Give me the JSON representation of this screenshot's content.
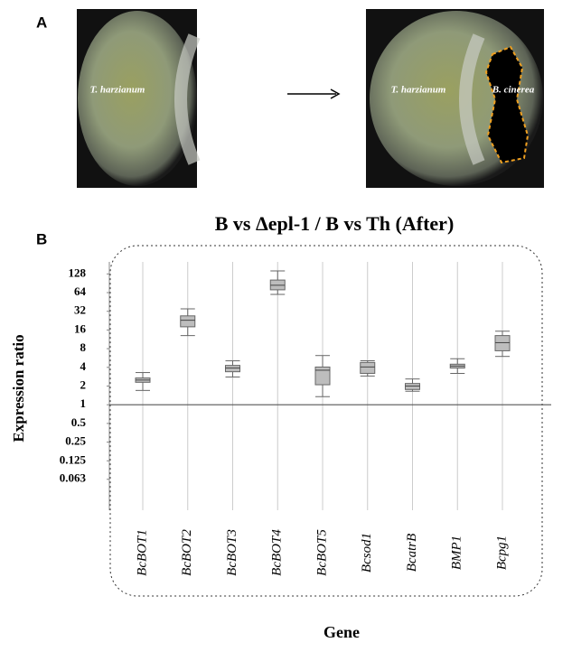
{
  "panels": {
    "a": "A",
    "b": "B"
  },
  "images": [
    {
      "labels": [
        "T. harzianum",
        "B. cinerea"
      ]
    },
    {
      "labels": [
        "T. harzianum",
        "B. cinerea"
      ]
    }
  ],
  "chart_data": {
    "type": "box",
    "title": "B vs Δepl-1 / B vs Th (After)",
    "x_label": "Gene",
    "y_label": "Expression ratio",
    "categories": [
      "BcBOT1",
      "BcBOT2",
      "BcBOT3",
      "BcBOT4",
      "BcBOT5",
      "Bcsod1",
      "BcatrB",
      "BMP1",
      "Bcpg1"
    ],
    "min": [
      1.7,
      13,
      2.8,
      60,
      1.35,
      2.9,
      1.65,
      3.2,
      6.0
    ],
    "q1": [
      2.3,
      18,
      3.4,
      71,
      2.1,
      3.2,
      1.76,
      3.9,
      7.4
    ],
    "median": [
      2.5,
      23,
      3.9,
      84,
      3.6,
      4.05,
      2.0,
      4.2,
      10
    ],
    "q3": [
      2.7,
      27,
      4.3,
      102,
      4.05,
      4.8,
      2.2,
      4.5,
      13
    ],
    "max": [
      3.3,
      35,
      5.1,
      143,
      6.2,
      5.1,
      2.6,
      5.5,
      15.3
    ],
    "color": "#bdbdbd",
    "log_scale": true,
    "reference_line": 1,
    "ylim": [
      0.02,
      200
    ],
    "yticks": [
      128,
      64,
      32,
      16,
      8,
      4,
      2,
      1,
      0.5,
      0.25,
      0.125,
      0.063
    ]
  }
}
